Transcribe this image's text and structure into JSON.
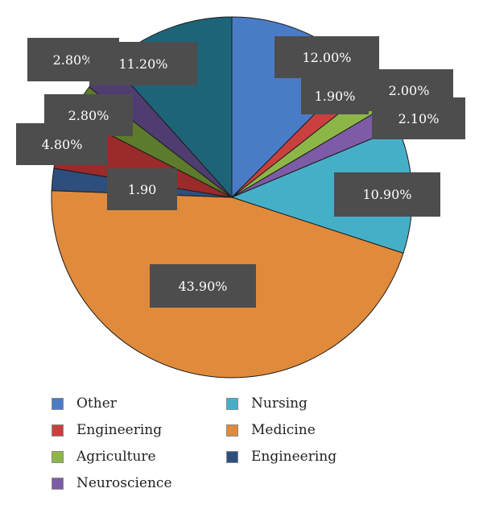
{
  "chart_data": {
    "type": "pie",
    "title": "",
    "slices": [
      {
        "legend": "Other",
        "label": "12.00%",
        "value": 12.0,
        "color": "#4a7bc6"
      },
      {
        "legend": "Engineering",
        "label": "1.90%",
        "value": 1.9,
        "color": "#c9403e"
      },
      {
        "legend": "Agriculture",
        "label": "2.00%",
        "value": 2.0,
        "color": "#8db648"
      },
      {
        "legend": "Neuroscience",
        "label": "2.10%",
        "value": 2.1,
        "color": "#7d5ba6"
      },
      {
        "legend": "Nursing",
        "label": "10.90%",
        "value": 10.9,
        "color": "#46afc8"
      },
      {
        "legend": "Medicine",
        "label": "43.90%",
        "value": 43.9,
        "color": "#e08a3c"
      },
      {
        "legend": "Engineering",
        "label": "1.90",
        "value": 1.9,
        "color": "#2e4f7e"
      },
      {
        "legend": "Engineering",
        "label": "4.80%",
        "value": 4.8,
        "color": "#9b2a2a"
      },
      {
        "legend": "Agriculture",
        "label": "2.80%",
        "value": 2.8,
        "color": "#5d7b2c"
      },
      {
        "legend": "Neuroscience",
        "label": "2.80%",
        "value": 2.8,
        "color": "#4f3d72"
      },
      {
        "legend": "",
        "label": "11.20%",
        "value": 11.2,
        "color": "#1e6478"
      }
    ],
    "legend": [
      {
        "name": "Other",
        "color": "#4a7bc6"
      },
      {
        "name": "Nursing",
        "color": "#46afc8"
      },
      {
        "name": "Engineering",
        "color": "#c9403e"
      },
      {
        "name": "Medicine",
        "color": "#e08a3c"
      },
      {
        "name": "Agriculture",
        "color": "#8db648"
      },
      {
        "name": "Engineering",
        "color": "#2e4f7e"
      },
      {
        "name": "Neuroscience",
        "color": "#7d5ba6"
      }
    ],
    "legend_position": "bottom"
  }
}
